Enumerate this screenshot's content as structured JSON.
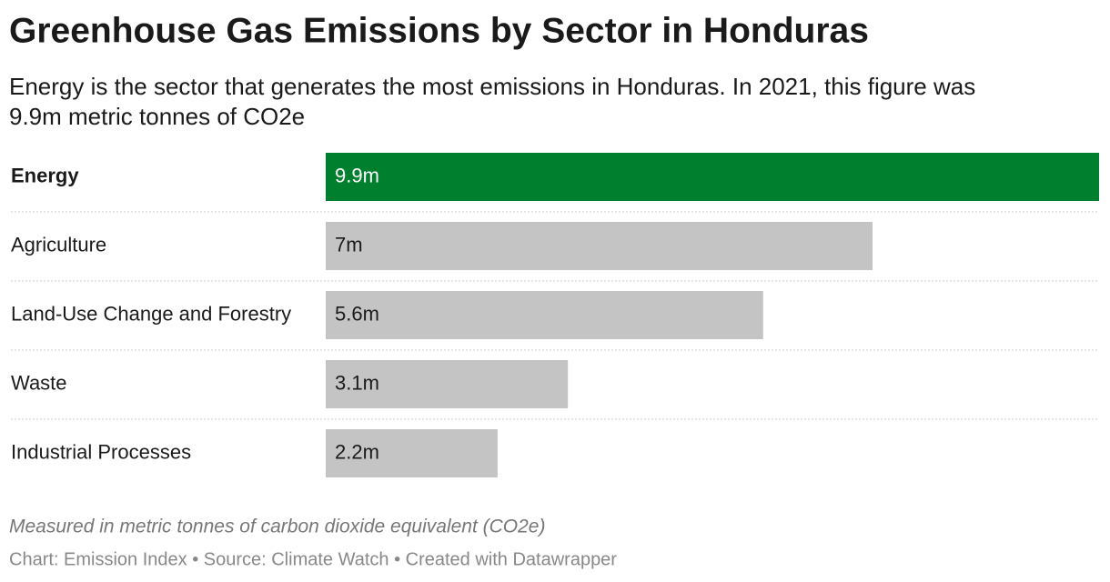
{
  "chart_data": {
    "type": "bar",
    "title": "Greenhouse Gas Emissions by Sector in Honduras",
    "subtitle": [
      "Energy is the sector that generates the most emissions in Honduras. In 2021, this figure was",
      "9.9m metric tonnes of CO2e"
    ],
    "categories": [
      "Energy",
      "Agriculture",
      "Land-Use Change and Forestry",
      "Waste",
      "Industrial Processes"
    ],
    "values": [
      9.9,
      7,
      5.6,
      3.1,
      2.2
    ],
    "value_labels": [
      "9.9m",
      "7m",
      "5.6m",
      "3.1m",
      "2.2m"
    ],
    "colors": [
      "#00802f",
      "#c4c4c4",
      "#c4c4c4",
      "#c4c4c4",
      "#c4c4c4"
    ],
    "note": "Measured in metric tonnes of carbon dioxide equivalent (CO2e)",
    "footer": "Chart: Emission Index • Source: Climate Watch • Created with Datawrapper"
  }
}
